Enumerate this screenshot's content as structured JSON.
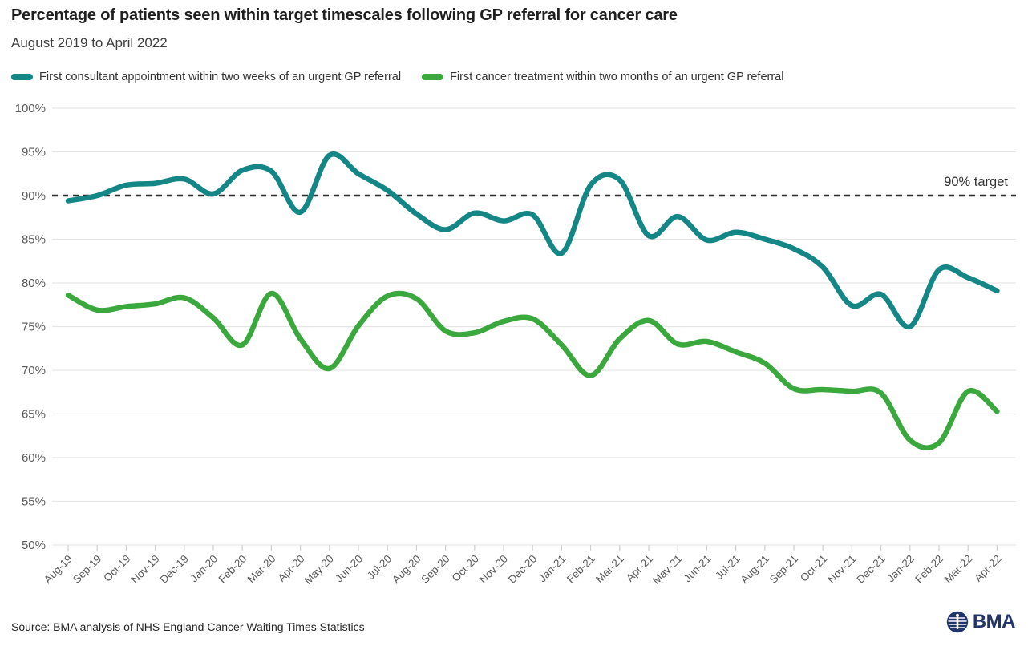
{
  "header": {
    "title": "Percentage of patients seen within target timescales following GP referral for cancer care",
    "subtitle": "August 2019 to April 2022"
  },
  "legend": [
    {
      "label": "First consultant appointment within two weeks of an urgent GP referral",
      "color": "#148686"
    },
    {
      "label": "First cancer treatment within two months of an urgent GP referral",
      "color": "#3AA83C"
    }
  ],
  "source": {
    "prefix": "Source: ",
    "link_text": "BMA analysis of NHS England Cancer Waiting Times Statistics"
  },
  "logo": {
    "text": "BMA",
    "color": "#21356B"
  },
  "chart_data": {
    "type": "line",
    "title": "Percentage of patients seen within target timescales following GP referral for cancer care",
    "subtitle": "August 2019 to April 2022",
    "xlabel": "",
    "ylabel": "",
    "ylim": [
      50,
      100
    ],
    "ytick_step": 5,
    "ytick_suffix": "%",
    "grid": "horizontal",
    "legend_position": "top",
    "x": [
      "Aug-19",
      "Sep-19",
      "Oct-19",
      "Nov-19",
      "Dec-19",
      "Jan-20",
      "Feb-20",
      "Mar-20",
      "Apr-20",
      "May-20",
      "Jun-20",
      "Jul-20",
      "Aug-20",
      "Sep-20",
      "Oct-20",
      "Nov-20",
      "Dec-20",
      "Jan-21",
      "Feb-21",
      "Mar-21",
      "Apr-21",
      "May-21",
      "Jun-21",
      "Jul-21",
      "Aug-21",
      "Sep-21",
      "Oct-21",
      "Nov-21",
      "Dec-21",
      "Jan-22",
      "Feb-22",
      "Mar-22",
      "Apr-22"
    ],
    "series": [
      {
        "name": "First consultant appointment within two weeks of an urgent GP referral",
        "color": "#148686",
        "values": [
          89.4,
          90.0,
          91.2,
          91.4,
          91.9,
          90.2,
          92.9,
          92.8,
          88.1,
          94.6,
          92.5,
          90.6,
          87.9,
          86.1,
          88.0,
          87.1,
          87.8,
          83.4,
          91.2,
          91.8,
          85.4,
          87.6,
          84.9,
          85.8,
          85.0,
          83.9,
          81.8,
          77.4,
          78.7,
          75.0,
          81.5,
          80.6,
          79.1
        ]
      },
      {
        "name": "First cancer treatment within two months of an urgent GP referral",
        "color": "#3AA83C",
        "values": [
          78.6,
          76.9,
          77.3,
          77.6,
          78.3,
          76.0,
          72.9,
          78.8,
          73.6,
          70.2,
          75.1,
          78.5,
          78.2,
          74.5,
          74.3,
          75.6,
          75.9,
          72.9,
          69.4,
          73.6,
          75.7,
          73.0,
          73.3,
          72.1,
          70.8,
          67.9,
          67.8,
          67.6,
          67.4,
          62.0,
          61.7,
          67.6,
          65.3
        ]
      }
    ],
    "target_line": {
      "value": 90,
      "label": "90% target",
      "style": "dashed",
      "color": "#2e2e2e"
    }
  }
}
